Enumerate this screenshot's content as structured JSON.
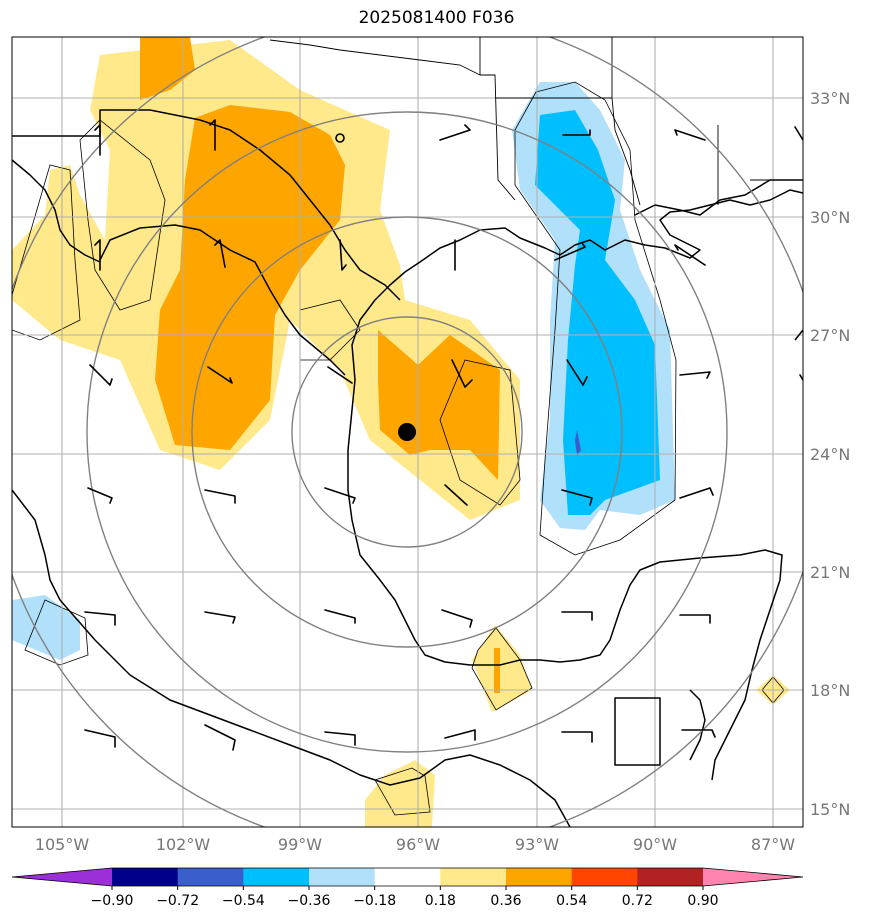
{
  "title": "2025081400 F036",
  "longitude_labels": [
    "105°W",
    "102°W",
    "99°W",
    "96°W",
    "93°W",
    "90°W",
    "87°W"
  ],
  "latitude_labels": [
    "33°N",
    "30°N",
    "27°N",
    "24°N",
    "21°N",
    "18°N",
    "15°N"
  ],
  "colorbar": {
    "labels": [
      "−0.90",
      "−0.72",
      "−0.54",
      "−0.36",
      "−0.18",
      "0.18",
      "0.36",
      "0.54",
      "0.72",
      "0.90"
    ],
    "colors": [
      "#9b30d9",
      "#00008b",
      "#3a5fcd",
      "#00bfff",
      "#b0e0fa",
      "#ffffff",
      "#ffe98a",
      "#ffa500",
      "#ff4500",
      "#b22222",
      "#ff85b0"
    ]
  },
  "colors": {
    "light_yellow": "#ffe98a",
    "orange": "#ffa500",
    "light_blue": "#b0e0fa",
    "deep_sky_blue": "#00bfff",
    "royal_blue": "#3a5fcd",
    "grid": "#b0b0b0",
    "range_rings": "#808080"
  },
  "center_marker": {
    "lon": -96.3,
    "lat": 24.5
  }
}
